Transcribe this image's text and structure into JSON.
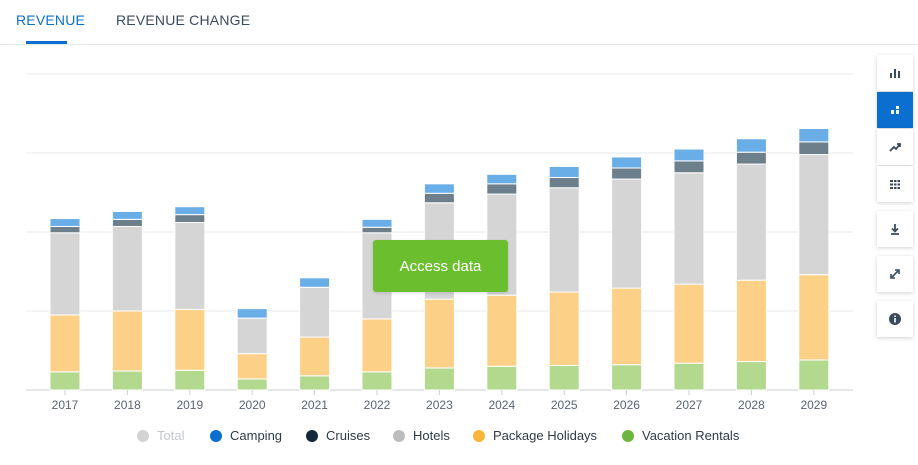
{
  "tabs": [
    {
      "label": "REVENUE",
      "active": true
    },
    {
      "label": "REVENUE CHANGE",
      "active": false
    }
  ],
  "access_button": "Access data",
  "toolbar": {
    "buttons": [
      {
        "icon": "bar-chart-icon",
        "active": false
      },
      {
        "icon": "stacked-bar-icon",
        "active": true
      },
      {
        "icon": "trend-line-icon",
        "active": false
      },
      {
        "icon": "table-grid-icon",
        "active": false
      },
      {
        "icon": "download-icon",
        "active": false
      },
      {
        "icon": "expand-icon",
        "active": false
      },
      {
        "icon": "info-icon",
        "active": false
      }
    ]
  },
  "legend": [
    {
      "label": "Total",
      "color": "#d3d3d3",
      "disabled": true
    },
    {
      "label": "Camping",
      "color": "#0b6fd0",
      "disabled": false
    },
    {
      "label": "Cruises",
      "color": "#13283a",
      "disabled": false
    },
    {
      "label": "Hotels",
      "color": "#bdbdbd",
      "disabled": false
    },
    {
      "label": "Package Holidays",
      "color": "#fbb53b",
      "disabled": false
    },
    {
      "label": "Vacation Rentals",
      "color": "#6cb640",
      "disabled": false
    }
  ],
  "chart_data": {
    "type": "bar",
    "stacked": true,
    "categories": [
      "2017",
      "2018",
      "2019",
      "2020",
      "2021",
      "2022",
      "2023",
      "2024",
      "2025",
      "2026",
      "2027",
      "2028",
      "2029"
    ],
    "ylim": [
      0,
      400
    ],
    "grid": true,
    "y_tick_labels_shown": false,
    "series": [
      {
        "name": "Vacation Rentals",
        "color": "#b3d98f",
        "values": [
          23,
          24,
          25,
          14,
          18,
          23,
          28,
          30,
          31,
          32,
          34,
          36,
          38
        ]
      },
      {
        "name": "Package Holidays",
        "color": "#fdd088",
        "values": [
          72,
          76,
          77,
          32,
          49,
          67,
          87,
          90,
          93,
          97,
          100,
          103,
          108
        ]
      },
      {
        "name": "Hotels",
        "color": "#d5d5d5",
        "values": [
          104,
          107,
          110,
          45,
          63,
          109,
          122,
          128,
          132,
          138,
          141,
          147,
          152
        ]
      },
      {
        "name": "Cruises",
        "color": "#6e7f8c",
        "values": [
          8,
          9,
          10,
          0,
          0,
          7,
          12,
          13,
          13,
          14,
          15,
          15,
          16
        ]
      },
      {
        "name": "Camping",
        "color": "#6aaee8",
        "values": [
          10,
          10,
          10,
          12,
          12,
          10,
          12,
          12,
          14,
          14,
          15,
          17,
          17
        ]
      }
    ]
  }
}
